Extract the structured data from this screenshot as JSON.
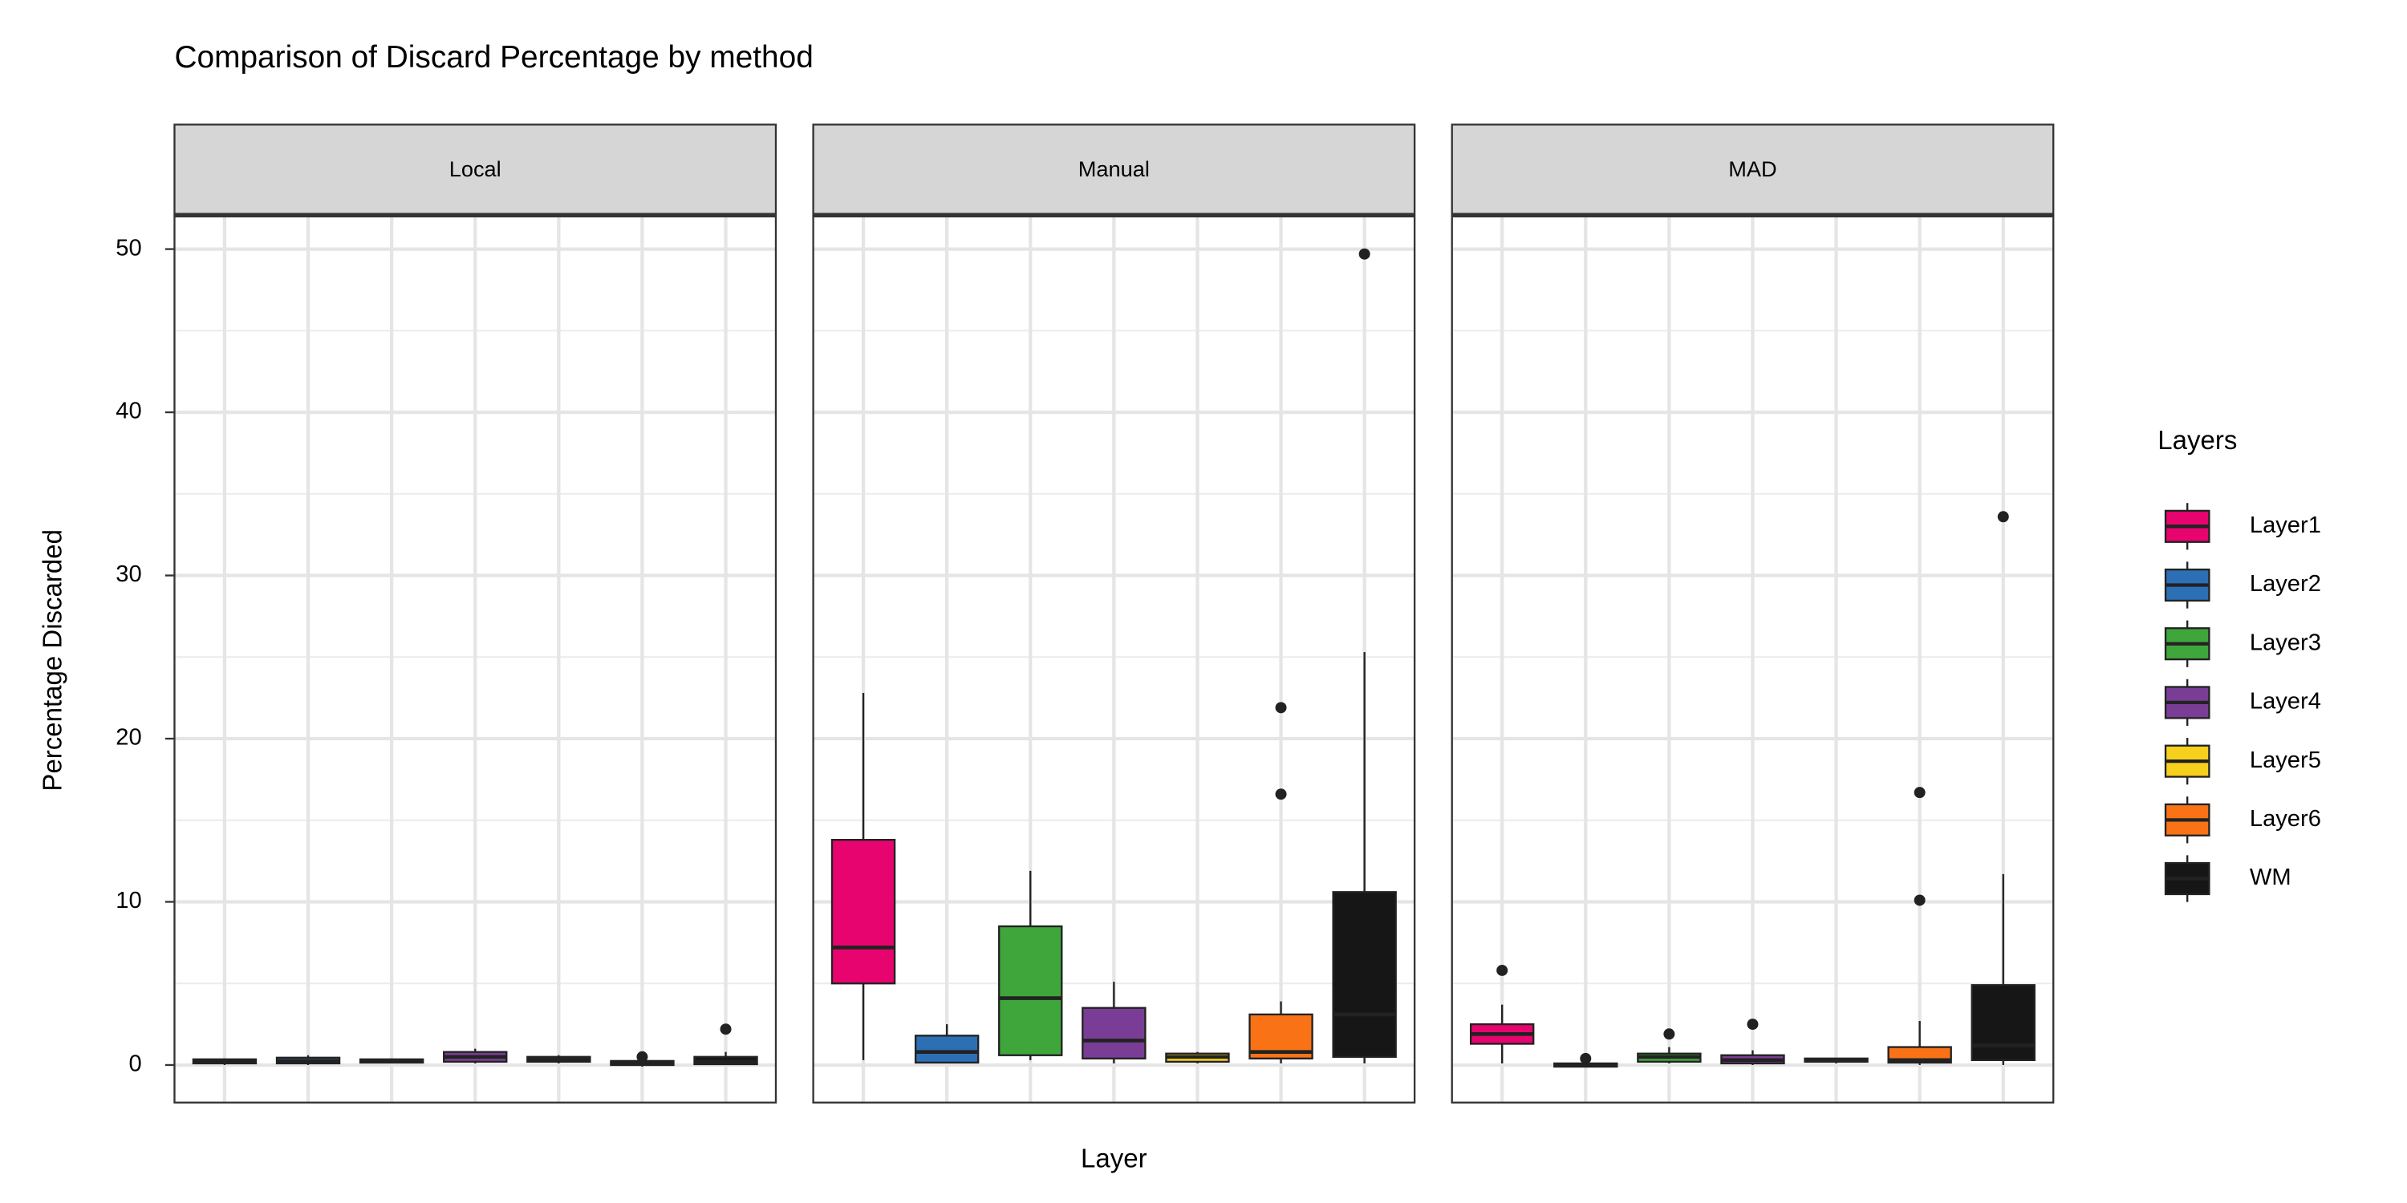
{
  "chart_data": {
    "type": "box",
    "title": "Comparison of Discard Percentage by method",
    "xlabel": "Layer",
    "ylabel": "Percentage Discarded",
    "legend_title": "Layers",
    "legend_position": "right",
    "grid": true,
    "ylim": [
      -2.3,
      52
    ],
    "yticks": [
      0,
      10,
      20,
      30,
      40,
      50
    ],
    "yminor": [
      5,
      15,
      25,
      35,
      45
    ],
    "facets": [
      "Local",
      "Manual",
      "MAD"
    ],
    "series": [
      {
        "name": "Layer1",
        "color": "#e7046f",
        "values": [
          {
            "min": 0,
            "q1": 0.1,
            "median": 0.2,
            "q3": 0.35,
            "max": 0.4,
            "outliers": []
          },
          {
            "min": 0.3,
            "q1": 5,
            "median": 7.2,
            "q3": 13.8,
            "max": 22.8,
            "outliers": []
          },
          {
            "min": 0.1,
            "q1": 1.3,
            "median": 1.9,
            "q3": 2.5,
            "max": 3.7,
            "outliers": [
              5.8
            ]
          }
        ]
      },
      {
        "name": "Layer2",
        "color": "#2c6fb4",
        "values": [
          {
            "min": 0,
            "q1": 0.1,
            "median": 0.25,
            "q3": 0.45,
            "max": 0.6,
            "outliers": []
          },
          {
            "min": 0.1,
            "q1": 0.15,
            "median": 0.8,
            "q3": 1.8,
            "max": 2.5,
            "outliers": []
          },
          {
            "min": -0.1,
            "q1": -0.1,
            "median": 0,
            "q3": 0.1,
            "max": 0.2,
            "outliers": [
              0.4
            ]
          }
        ]
      },
      {
        "name": "Layer3",
        "color": "#3fa63b",
        "values": [
          {
            "min": 0.1,
            "q1": 0.15,
            "median": 0.25,
            "q3": 0.35,
            "max": 0.4,
            "outliers": []
          },
          {
            "min": 0.3,
            "q1": 0.6,
            "median": 4.1,
            "q3": 8.5,
            "max": 11.9,
            "outliers": []
          },
          {
            "min": 0.1,
            "q1": 0.2,
            "median": 0.5,
            "q3": 0.7,
            "max": 1.1,
            "outliers": [
              1.9
            ]
          }
        ]
      },
      {
        "name": "Layer4",
        "color": "#7a3d96",
        "values": [
          {
            "min": 0.1,
            "q1": 0.2,
            "median": 0.5,
            "q3": 0.8,
            "max": 1.0,
            "outliers": []
          },
          {
            "min": 0.1,
            "q1": 0.4,
            "median": 1.5,
            "q3": 3.5,
            "max": 5.1,
            "outliers": []
          },
          {
            "min": 0,
            "q1": 0.1,
            "median": 0.3,
            "q3": 0.6,
            "max": 0.9,
            "outliers": [
              2.5
            ]
          }
        ]
      },
      {
        "name": "Layer5",
        "color": "#f7cf1d",
        "values": [
          {
            "min": 0.1,
            "q1": 0.2,
            "median": 0.35,
            "q3": 0.5,
            "max": 0.6,
            "outliers": []
          },
          {
            "min": 0.1,
            "q1": 0.2,
            "median": 0.5,
            "q3": 0.7,
            "max": 0.8,
            "outliers": []
          },
          {
            "min": 0.1,
            "q1": 0.2,
            "median": 0.3,
            "q3": 0.4,
            "max": 0.4,
            "outliers": []
          }
        ]
      },
      {
        "name": "Layer6",
        "color": "#f97316",
        "values": [
          {
            "min": -0.1,
            "q1": 0,
            "median": 0.1,
            "q3": 0.25,
            "max": 0.3,
            "outliers": [
              0.5
            ]
          },
          {
            "min": 0.1,
            "q1": 0.4,
            "median": 0.8,
            "q3": 3.1,
            "max": 3.9,
            "outliers": [
              16.6,
              21.9
            ]
          },
          {
            "min": 0,
            "q1": 0.15,
            "median": 0.3,
            "q3": 1.1,
            "max": 2.7,
            "outliers": [
              10.1,
              16.7
            ]
          }
        ]
      },
      {
        "name": "WM",
        "color": "#161616",
        "values": [
          {
            "min": 0,
            "q1": 0.05,
            "median": 0.2,
            "q3": 0.5,
            "max": 0.8,
            "outliers": [
              2.2
            ]
          },
          {
            "min": 0.1,
            "q1": 0.5,
            "median": 3.1,
            "q3": 10.6,
            "max": 25.3,
            "outliers": [
              49.7
            ]
          },
          {
            "min": 0,
            "q1": 0.3,
            "median": 1.2,
            "q3": 4.9,
            "max": 11.7,
            "outliers": [
              33.6
            ]
          }
        ]
      }
    ]
  }
}
